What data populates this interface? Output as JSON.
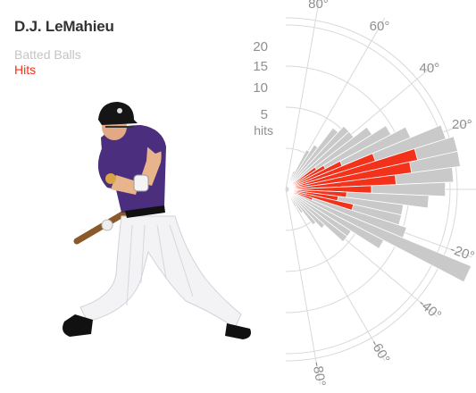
{
  "header": {
    "player_name": "D.J. LeMahieu",
    "legend_batted": "Batted Balls",
    "legend_hits": "Hits"
  },
  "colors": {
    "batted": "#c9c9c9",
    "hits": "#f2321a",
    "grid": "#d9d9d9",
    "text": "#333333"
  },
  "chart_data": {
    "type": "polar-bar",
    "angle_unit": "degrees",
    "radial_ticks": [
      5,
      10,
      15,
      20
    ],
    "radial_unit_label": "hits",
    "angle_ticks": [
      80,
      60,
      40,
      20,
      -20,
      -40,
      -60,
      -80
    ],
    "angle_range": [
      -90,
      90
    ],
    "bin_width_deg": 5,
    "series": [
      {
        "name": "Batted Balls",
        "bins": [
          {
            "angle": 65,
            "value": 2
          },
          {
            "angle": 60,
            "value": 5
          },
          {
            "angle": 55,
            "value": 6
          },
          {
            "angle": 50,
            "value": 9
          },
          {
            "angle": 45,
            "value": 10
          },
          {
            "angle": 40,
            "value": 10
          },
          {
            "angle": 35,
            "value": 12
          },
          {
            "angle": 30,
            "value": 14
          },
          {
            "angle": 25,
            "value": 16
          },
          {
            "angle": 20,
            "value": 20
          },
          {
            "angle": 15,
            "value": 21
          },
          {
            "angle": 10,
            "value": 21
          },
          {
            "angle": 5,
            "value": 20
          },
          {
            "angle": 0,
            "value": 19
          },
          {
            "angle": -5,
            "value": 17
          },
          {
            "angle": -10,
            "value": 14
          },
          {
            "angle": -15,
            "value": 14
          },
          {
            "angle": -20,
            "value": 15
          },
          {
            "angle": -25,
            "value": 24
          },
          {
            "angle": -30,
            "value": 13
          },
          {
            "angle": -35,
            "value": 9
          },
          {
            "angle": -40,
            "value": 9
          },
          {
            "angle": -45,
            "value": 6
          },
          {
            "angle": -50,
            "value": 5
          },
          {
            "angle": -55,
            "value": 3
          },
          {
            "angle": -60,
            "value": 2
          }
        ]
      },
      {
        "name": "Hits",
        "bins": [
          {
            "angle": 40,
            "value": 1
          },
          {
            "angle": 35,
            "value": 4
          },
          {
            "angle": 30,
            "value": 5
          },
          {
            "angle": 25,
            "value": 7
          },
          {
            "angle": 20,
            "value": 11
          },
          {
            "angle": 15,
            "value": 16
          },
          {
            "angle": 10,
            "value": 15
          },
          {
            "angle": 5,
            "value": 13
          },
          {
            "angle": 0,
            "value": 10
          },
          {
            "angle": -5,
            "value": 7
          },
          {
            "angle": -10,
            "value": 6
          },
          {
            "angle": -15,
            "value": 8
          },
          {
            "angle": -20,
            "value": 3
          },
          {
            "angle": -25,
            "value": 1
          }
        ]
      }
    ],
    "title": "D.J. LeMahieu"
  }
}
